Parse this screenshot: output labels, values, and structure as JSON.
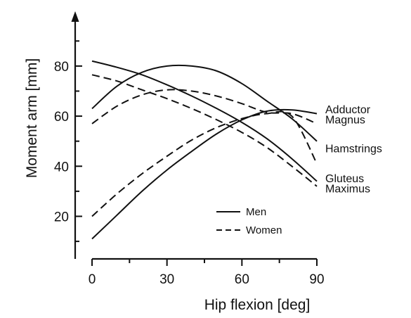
{
  "chart_data": {
    "type": "line",
    "xlabel": "Hip flexion [deg]",
    "ylabel": "Moment arm [mm]",
    "xlim": [
      0,
      90
    ],
    "ylim": [
      3,
      103
    ],
    "x_ticks": [
      0,
      30,
      60,
      90
    ],
    "y_ticks": [
      20,
      40,
      60,
      80
    ],
    "grid": false,
    "legend": {
      "placement": "bottom-center",
      "entries": [
        {
          "label": "Men",
          "style": "solid"
        },
        {
          "label": "Women",
          "style": "dashed"
        }
      ]
    },
    "curve_labels": [
      {
        "text": "Adductor",
        "at": [
          90,
          62.5
        ]
      },
      {
        "text": "Magnus",
        "at": [
          90,
          58.5
        ]
      },
      {
        "text": "Hamstrings",
        "at": [
          90,
          47
        ]
      },
      {
        "text": "Gluteus",
        "at": [
          90,
          35
        ]
      },
      {
        "text": "Maximus",
        "at": [
          90,
          31
        ]
      }
    ],
    "series": [
      {
        "muscle": "Adductor Magnus",
        "sex": "Men",
        "style": "solid",
        "x": [
          0,
          10,
          20,
          30,
          40,
          50,
          60,
          70,
          80,
          90
        ],
        "y": [
          63,
          72,
          77.5,
          80,
          80,
          78,
          73,
          66,
          59,
          50
        ]
      },
      {
        "muscle": "Adductor Magnus",
        "sex": "Women",
        "style": "dashed",
        "x": [
          0,
          10,
          20,
          30,
          40,
          50,
          60,
          70,
          80,
          90
        ],
        "y": [
          57,
          64,
          68.5,
          70.5,
          70,
          68,
          65,
          61.5,
          61,
          57
        ]
      },
      {
        "muscle": "Hamstrings",
        "sex": "Men",
        "style": "solid",
        "x": [
          0,
          10,
          20,
          30,
          40,
          50,
          60,
          70,
          80,
          90
        ],
        "y": [
          82,
          79.5,
          76.5,
          72.5,
          68,
          63,
          57.5,
          51,
          43,
          34
        ]
      },
      {
        "muscle": "Hamstrings",
        "sex": "Women",
        "style": "dashed",
        "x": [
          0,
          10,
          20,
          30,
          40,
          50,
          60,
          70,
          80,
          90
        ],
        "y": [
          76.5,
          74,
          70.5,
          67,
          63,
          58.5,
          53.5,
          47.5,
          40,
          32
        ]
      },
      {
        "muscle": "Gluteus Maximus",
        "sex": "Men",
        "style": "solid",
        "x": [
          0,
          10,
          20,
          30,
          40,
          50,
          60,
          70,
          80,
          90
        ],
        "y": [
          11,
          20.5,
          30,
          38.5,
          46,
          53,
          58.5,
          62,
          62.5,
          61
        ]
      },
      {
        "muscle": "Gluteus Maximus",
        "sex": "Women",
        "style": "dashed",
        "x": [
          0,
          10,
          20,
          30,
          40,
          50,
          60,
          70,
          80,
          90
        ],
        "y": [
          20,
          29,
          37,
          44,
          50.5,
          55.5,
          59,
          61,
          60,
          41
        ]
      }
    ]
  }
}
